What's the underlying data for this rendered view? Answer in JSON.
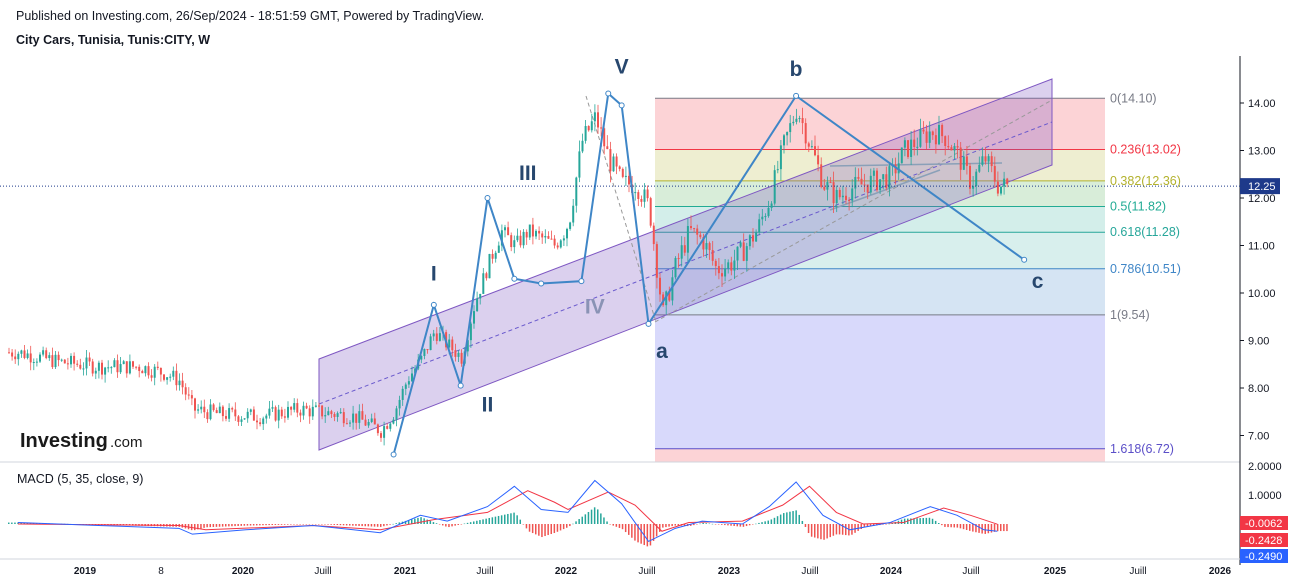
{
  "header": {
    "published": "Published on Investing.com, 26/Sep/2024 - 18:51:59 GMT, Powered by TradingView.",
    "title": "City Cars, Tunisia, Tunis:CITY, W"
  },
  "logo": {
    "text": "Investing",
    "suffix": ".com"
  },
  "colors": {
    "up": "#26a69a",
    "down": "#ef5350",
    "wave": "#3f86c7",
    "channel": "#7e57c2",
    "macd": "#2962ff",
    "signal": "#f23645"
  },
  "chart_data": [
    {
      "type": "candlestick",
      "title": "City Cars, Tunisia, Tunis:CITY, W",
      "ylim": [
        6.3,
        14.9
      ],
      "y_ticks": [
        "7.00",
        "8.00",
        "9.00",
        "10.00",
        "11.00",
        "12.00",
        "13.00",
        "14.00"
      ],
      "x_ticks": [
        "2019",
        "8",
        "2020",
        "Juill",
        "2021",
        "Juill",
        "2022",
        "Juill",
        "2023",
        "Juill",
        "2024",
        "Juill",
        "2025",
        "Juill",
        "2026"
      ],
      "last_price": "12.25",
      "price_path": [
        [
          "2018-08",
          8.75
        ],
        [
          "2018-11",
          8.55
        ],
        [
          "2019-02",
          8.45
        ],
        [
          "2019-05",
          8.45
        ],
        [
          "2019-07",
          8.3
        ],
        [
          "2019-08",
          8.15
        ],
        [
          "2019-09",
          7.55
        ],
        [
          "2019-11",
          7.45
        ],
        [
          "2020-02",
          7.4
        ],
        [
          "2020-05",
          7.55
        ],
        [
          "2020-09",
          7.4
        ],
        [
          "2020-11",
          7.1
        ],
        [
          "2020-12",
          7.5
        ],
        [
          "2021-01",
          8.2
        ],
        [
          "2021-02",
          8.6
        ],
        [
          "2021-03",
          9.2
        ],
        [
          "2021-04",
          8.9
        ],
        [
          "2021-05",
          8.65
        ],
        [
          "2021-06",
          9.8
        ],
        [
          "2021-07",
          10.6
        ],
        [
          "2021-08",
          11.3
        ],
        [
          "2021-09",
          11.0
        ],
        [
          "2021-10",
          11.3
        ],
        [
          "2021-11",
          11.15
        ],
        [
          "2021-12",
          11.0
        ],
        [
          "2022-01",
          11.5
        ],
        [
          "2022-02",
          13.2
        ],
        [
          "2022-03",
          13.7
        ],
        [
          "2022-04",
          12.8
        ],
        [
          "2022-05",
          12.3
        ],
        [
          "2022-06",
          12.3
        ],
        [
          "2022-07",
          11.8
        ],
        [
          "2022-08",
          9.55
        ],
        [
          "2022-09",
          10.6
        ],
        [
          "2022-10",
          11.3
        ],
        [
          "2022-11",
          11.1
        ],
        [
          "2022-12",
          10.5
        ],
        [
          "2023-01",
          10.6
        ],
        [
          "2023-02",
          10.9
        ],
        [
          "2023-03",
          11.3
        ],
        [
          "2023-04",
          12.0
        ],
        [
          "2023-05",
          13.1
        ],
        [
          "2023-06",
          13.9
        ],
        [
          "2023-07",
          13.1
        ],
        [
          "2023-08",
          12.3
        ],
        [
          "2023-09",
          12.0
        ],
        [
          "2023-10",
          12.2
        ],
        [
          "2023-11",
          12.3
        ],
        [
          "2024-01",
          12.45
        ],
        [
          "2024-02",
          13.0
        ],
        [
          "2024-04",
          13.4
        ],
        [
          "2024-05",
          13.3
        ],
        [
          "2024-06",
          12.9
        ],
        [
          "2024-07",
          12.3
        ],
        [
          "2024-08",
          12.85
        ],
        [
          "2024-09",
          12.25
        ]
      ],
      "elliott_waves": [
        {
          "label": "I",
          "date": "2021-03",
          "price": 9.8
        },
        {
          "label": "II",
          "date": "2021-07",
          "price": 8.05
        },
        {
          "label": "III",
          "date": "2021-10",
          "price": 12.0
        },
        {
          "label": "IV",
          "date": "2022-03",
          "price": 10.2
        },
        {
          "label": "V",
          "date": "2022-05",
          "price": 14.2
        },
        {
          "label": "a",
          "date": "2022-08",
          "price": 9.35
        },
        {
          "label": "b",
          "date": "2023-06",
          "price": 14.15
        },
        {
          "label": "c",
          "date": "2024-12",
          "price": 10.7
        }
      ],
      "wave_path": [
        [
          "2020-12",
          6.6
        ],
        [
          "2021-03",
          9.75
        ],
        [
          "2021-05",
          8.05
        ],
        [
          "2021-07",
          12.0
        ],
        [
          "2021-09",
          10.3
        ],
        [
          "2021-11",
          10.2
        ],
        [
          "2022-02",
          10.25
        ],
        [
          "2022-04",
          14.2
        ],
        [
          "2022-05",
          13.95
        ],
        [
          "2022-07",
          9.35
        ],
        [
          "2023-06",
          14.15
        ],
        [
          "2024-11",
          10.7
        ]
      ],
      "fibonacci": [
        {
          "level": "0",
          "value": "14.10",
          "color": "#787b86"
        },
        {
          "level": "0.236",
          "value": "13.02",
          "color": "#f23645"
        },
        {
          "level": "0.382",
          "value": "12.36",
          "color": "#b3b22e"
        },
        {
          "level": "0.5",
          "value": "11.82",
          "color": "#22ab94"
        },
        {
          "level": "0.618",
          "value": "11.28",
          "color": "#26a69a"
        },
        {
          "level": "0.786",
          "value": "10.51",
          "color": "#3f86c7"
        },
        {
          "level": "1",
          "value": "9.54",
          "color": "#787b86"
        },
        {
          "level": "1.618",
          "value": "6.72",
          "color": "#5b4fc8"
        }
      ]
    },
    {
      "type": "line",
      "title": "MACD (5, 35, close, 9)",
      "ylim": [
        -0.45,
        2.3
      ],
      "y_ticks": [
        "2.0000",
        "1.0000"
      ],
      "value_labels": [
        {
          "value": "-0.0062",
          "color": "#f23645"
        },
        {
          "value": "-0.2428",
          "color": "#f23645"
        },
        {
          "value": "-0.2490",
          "color": "#2962ff"
        }
      ],
      "series": [
        {
          "name": "MACD",
          "points": [
            [
              "2018-08",
              0.05
            ],
            [
              "2019-02",
              -0.05
            ],
            [
              "2019-08",
              -0.15
            ],
            [
              "2019-09",
              -0.35
            ],
            [
              "2020-01",
              -0.2
            ],
            [
              "2020-06",
              -0.05
            ],
            [
              "2020-09",
              -0.2
            ],
            [
              "2020-11",
              -0.3
            ],
            [
              "2021-02",
              0.3
            ],
            [
              "2021-04",
              0.1
            ],
            [
              "2021-07",
              0.6
            ],
            [
              "2021-09",
              1.3
            ],
            [
              "2021-11",
              0.5
            ],
            [
              "2022-01",
              0.4
            ],
            [
              "2022-03",
              1.5
            ],
            [
              "2022-05",
              0.7
            ],
            [
              "2022-07",
              -0.6
            ],
            [
              "2022-09",
              -0.15
            ],
            [
              "2022-11",
              0.1
            ],
            [
              "2023-02",
              0.0
            ],
            [
              "2023-04",
              0.6
            ],
            [
              "2023-06",
              1.45
            ],
            [
              "2023-08",
              0.3
            ],
            [
              "2023-10",
              -0.2
            ],
            [
              "2024-01",
              0.05
            ],
            [
              "2024-04",
              0.6
            ],
            [
              "2024-06",
              0.3
            ],
            [
              "2024-08",
              -0.2
            ],
            [
              "2024-09",
              -0.25
            ]
          ]
        },
        {
          "name": "Signal",
          "points": [
            [
              "2018-08",
              0.0
            ],
            [
              "2019-08",
              -0.05
            ],
            [
              "2019-10",
              -0.2
            ],
            [
              "2020-06",
              -0.05
            ],
            [
              "2020-11",
              -0.2
            ],
            [
              "2021-03",
              0.15
            ],
            [
              "2021-07",
              0.4
            ],
            [
              "2021-10",
              1.15
            ],
            [
              "2021-12",
              0.75
            ],
            [
              "2022-01",
              0.5
            ],
            [
              "2022-04",
              1.1
            ],
            [
              "2022-06",
              0.65
            ],
            [
              "2022-08",
              -0.25
            ],
            [
              "2022-10",
              0.05
            ],
            [
              "2023-02",
              0.1
            ],
            [
              "2023-05",
              0.65
            ],
            [
              "2023-07",
              1.3
            ],
            [
              "2023-09",
              0.4
            ],
            [
              "2023-11",
              0.0
            ],
            [
              "2024-02",
              0.05
            ],
            [
              "2024-05",
              0.55
            ],
            [
              "2024-07",
              0.3
            ],
            [
              "2024-09",
              -0.0062
            ]
          ]
        }
      ]
    }
  ]
}
